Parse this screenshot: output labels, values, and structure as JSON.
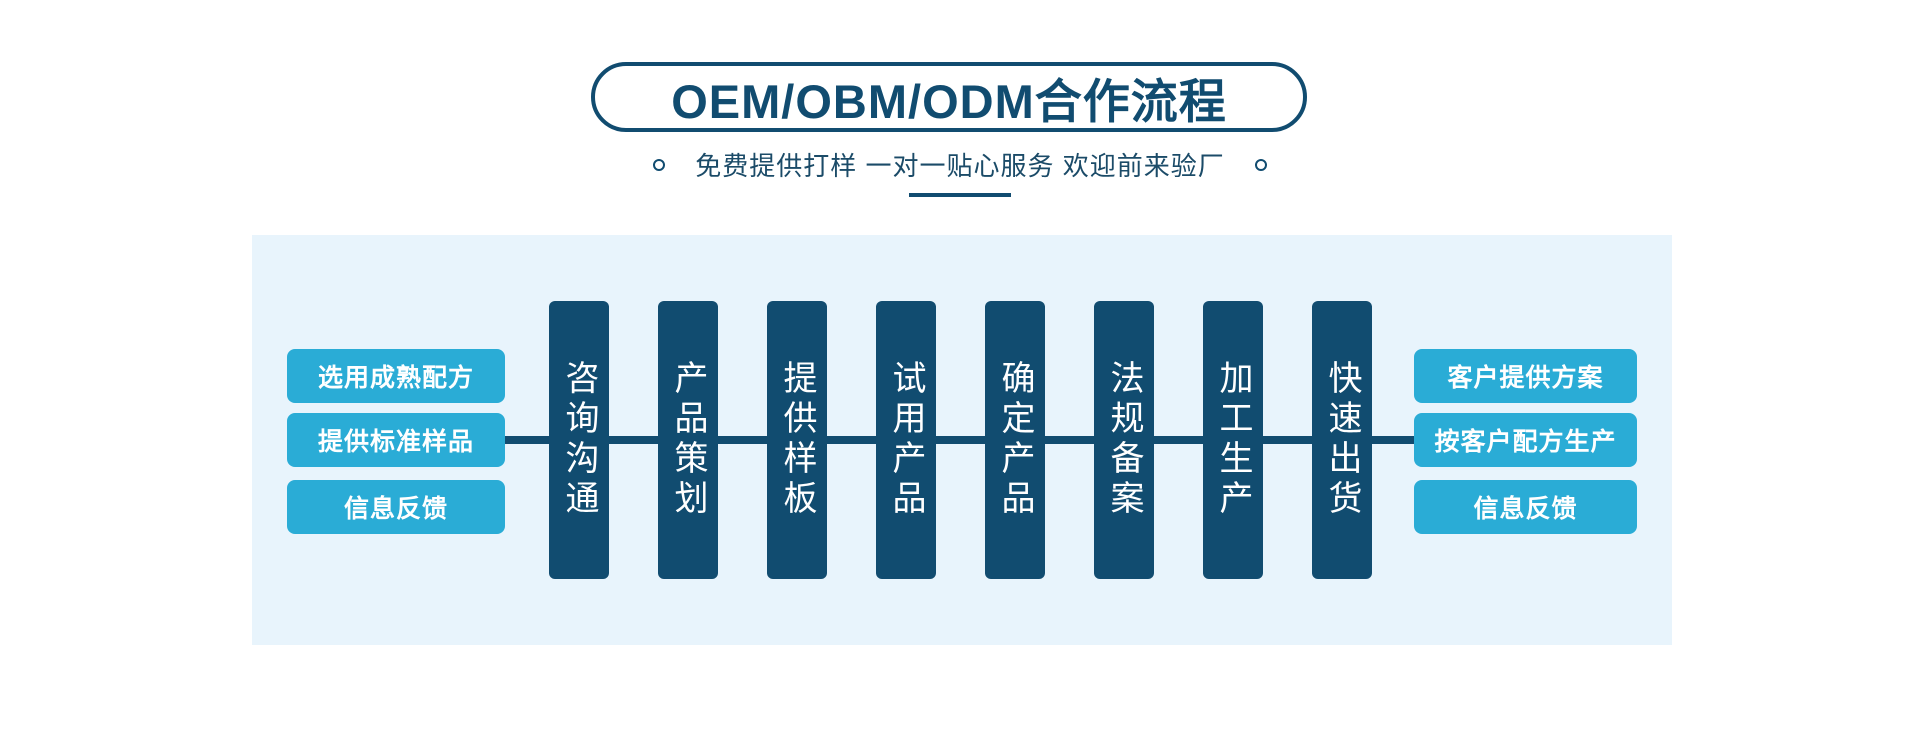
{
  "header": {
    "title": "OEM/OBM/ODM合作流程",
    "subtitle": "免费提供打样 一对一贴心服务 欢迎前来验厂"
  },
  "colors": {
    "navy": "#114C70",
    "accent_blue": "#2AACD6",
    "panel_background": "#E8F4FC",
    "box_text": "#FFFFFF",
    "page_background": "#FFFFFF"
  },
  "flow": {
    "left_items": [
      {
        "label": "选用成熟配方"
      },
      {
        "label": "提供标准样品"
      },
      {
        "label": "信息反馈"
      }
    ],
    "steps": [
      {
        "label": "咨询沟通"
      },
      {
        "label": "产品策划"
      },
      {
        "label": "提供样板"
      },
      {
        "label": "试用产品"
      },
      {
        "label": "确定产品"
      },
      {
        "label": "法规备案"
      },
      {
        "label": "加工生产"
      },
      {
        "label": "快速出货"
      }
    ],
    "right_items": [
      {
        "label": "客户提供方案"
      },
      {
        "label": "按客户配方生产"
      },
      {
        "label": "信息反馈"
      }
    ]
  }
}
